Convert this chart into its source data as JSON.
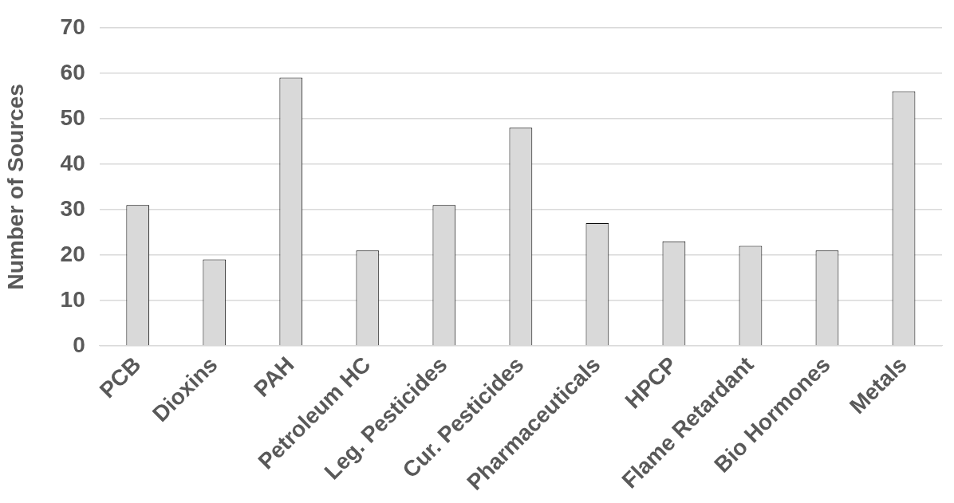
{
  "chart_data": {
    "type": "bar",
    "ylabel": "Number of Sources",
    "categories": [
      "PCB",
      "Dioxins",
      "PAH",
      "Petroleum HC",
      "Leg. Pesticides",
      "Cur. Pesticides",
      "Pharmaceuticals",
      "HPCP",
      "Flame Retardant",
      "Bio Hormones",
      "Metals"
    ],
    "values": [
      31,
      19,
      59,
      21,
      31,
      48,
      27,
      23,
      22,
      21,
      56
    ],
    "color": "#d9d9d9",
    "ylim": [
      0,
      70
    ],
    "yticks": [
      0,
      10,
      20,
      30,
      40,
      50,
      60,
      70
    ],
    "grid": "y",
    "legend": false
  }
}
